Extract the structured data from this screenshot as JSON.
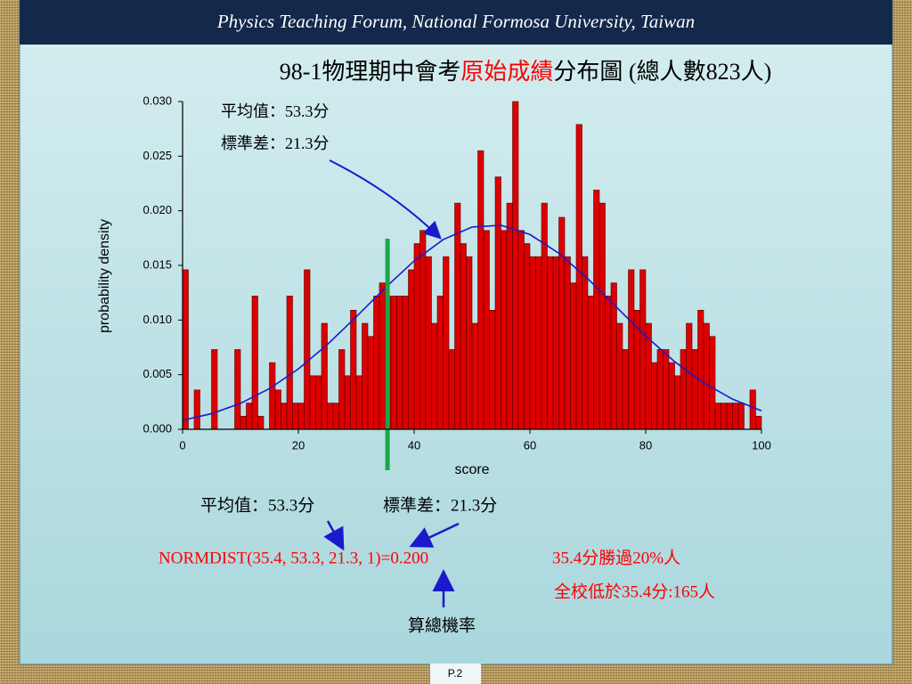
{
  "header": "Physics Teaching Forum, National Formosa University, Taiwan",
  "chart_data": {
    "type": "histogram",
    "title": [
      "98-1物理期中會考",
      "原始成績",
      "分布圖 (總人數823人)"
    ],
    "title_colors": [
      "#000000",
      "#ff0000",
      "#000000"
    ],
    "xlabel": "score",
    "ylabel": "probability density",
    "annotations": [
      "平均值：53.3分",
      "標準差：21.3分"
    ],
    "bins": [
      0,
      1,
      2,
      3,
      4,
      5,
      6,
      7,
      8,
      9,
      10,
      11,
      12,
      13,
      14,
      15,
      16,
      17,
      18,
      19,
      20,
      21,
      22,
      23,
      24,
      25,
      26,
      27,
      28,
      29,
      30,
      31,
      32,
      33,
      34,
      35,
      36,
      37,
      38,
      39,
      40,
      41,
      42,
      43,
      44,
      45,
      46,
      47,
      48,
      49,
      50,
      51,
      52,
      53,
      54,
      55,
      56,
      57,
      58,
      59,
      60,
      61,
      62,
      63,
      64,
      65,
      66,
      67,
      68,
      69,
      70,
      71,
      72,
      73,
      74,
      75,
      76,
      77,
      78,
      79,
      80,
      81,
      82,
      83,
      84,
      85,
      86,
      87,
      88,
      89,
      90,
      91,
      92,
      93,
      94,
      95,
      96,
      97,
      98,
      99,
      100
    ],
    "values": [
      0.0146,
      0,
      0.0036,
      0,
      0,
      0.0073,
      0,
      0,
      0,
      0.0073,
      0.0012,
      0.0024,
      0.0122,
      0.0012,
      0,
      0.0061,
      0.0036,
      0.0024,
      0.0122,
      0.0024,
      0.0024,
      0.0146,
      0.0049,
      0.0049,
      0.0097,
      0.0024,
      0.0024,
      0.0073,
      0.0049,
      0.0109,
      0.0049,
      0.0097,
      0.0085,
      0.0122,
      0.0134,
      0.0122,
      0.0122,
      0.0122,
      0.0122,
      0.0146,
      0.017,
      0.0182,
      0.0158,
      0.0097,
      0.0122,
      0.0158,
      0.0073,
      0.0207,
      0.017,
      0.0158,
      0.0097,
      0.0255,
      0.0182,
      0.0109,
      0.0231,
      0.0182,
      0.0207,
      0.03,
      0.0182,
      0.017,
      0.0158,
      0.0158,
      0.0207,
      0.0158,
      0.0158,
      0.0194,
      0.0158,
      0.0134,
      0.0279,
      0.0158,
      0.0122,
      0.0219,
      0.0207,
      0.0122,
      0.0134,
      0.0097,
      0.0073,
      0.0146,
      0.0109,
      0.0146,
      0.0097,
      0.0061,
      0.0073,
      0.0073,
      0.0061,
      0.0049,
      0.0073,
      0.0097,
      0.0073,
      0.0109,
      0.0097,
      0.0085,
      0.0024,
      0.0024,
      0.0024,
      0.0024,
      0.0024,
      0,
      0.0036,
      0.0012
    ],
    "color": "#dd0000",
    "curve": {
      "color": "#1a1acc",
      "x": [
        0,
        5,
        10,
        15,
        20,
        25,
        30,
        35,
        40,
        45,
        50,
        55,
        60,
        65,
        70,
        75,
        80,
        85,
        90,
        95,
        100
      ],
      "values": [
        0.00082,
        0.00143,
        0.00237,
        0.00372,
        0.00552,
        0.00775,
        0.0103,
        0.01295,
        0.01541,
        0.01736,
        0.01851,
        0.01867,
        0.01783,
        0.01611,
        0.01378,
        0.01115,
        0.00854,
        0.00619,
        0.00425,
        0.00276,
        0.00169
      ]
    },
    "threshold": {
      "x": 35.4,
      "color": "#1aa64a"
    },
    "xlim": [
      0,
      100
    ],
    "xticks": [
      0,
      20,
      40,
      60,
      80,
      100
    ],
    "ylim": [
      0,
      0.03
    ],
    "yticks": [
      {
        "value": 0,
        "label": "0.000"
      },
      {
        "value": 0.005,
        "label": "0.005"
      },
      {
        "value": 0.01,
        "label": "0.010"
      },
      {
        "value": 0.015,
        "label": "0.015"
      },
      {
        "value": 0.02,
        "label": "0.020"
      },
      {
        "value": 0.025,
        "label": "0.025"
      },
      {
        "value": 0.03,
        "label": "0.030"
      }
    ],
    "grid": false
  },
  "notes": {
    "mean": "平均值：53.3分",
    "sd": "標準差：21.3分",
    "formula": "NORMDIST(35.4, 53.3, 21.3, 1)=0.200",
    "result1": "35.4分勝過20%人",
    "result2": "全校低於35.4分:165人",
    "caption": "算總機率"
  },
  "page": "P.2"
}
